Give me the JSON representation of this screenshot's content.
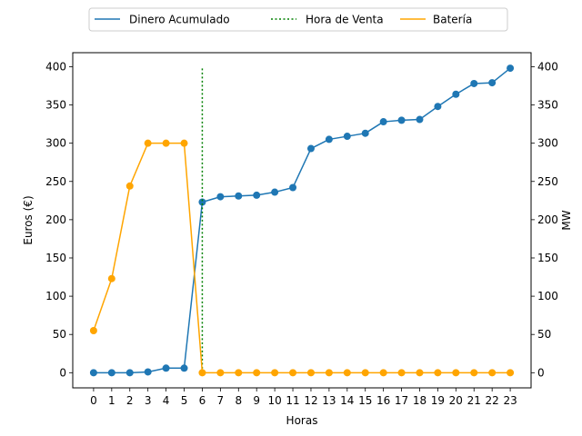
{
  "chart_data": {
    "type": "line",
    "xlabel": "Horas",
    "ylabel_left": "Euros (€)",
    "ylabel_right": "MW",
    "x": [
      0,
      1,
      2,
      3,
      4,
      5,
      6,
      7,
      8,
      9,
      10,
      11,
      12,
      13,
      14,
      15,
      16,
      17,
      18,
      19,
      20,
      21,
      22,
      23
    ],
    "ylim": [
      -19.8,
      418.3
    ],
    "yticks": [
      0,
      50,
      100,
      150,
      200,
      250,
      300,
      350,
      400
    ],
    "legend_position": "top-center",
    "series": [
      {
        "name": "Dinero Acumulado",
        "color": "#1f77b4",
        "style": "solid",
        "marker": "circle",
        "values": [
          0,
          0,
          0,
          1,
          6,
          6,
          223,
          230,
          231,
          232,
          236,
          242,
          293,
          305,
          309,
          313,
          328,
          330,
          331,
          348,
          364,
          378,
          379,
          398
        ]
      },
      {
        "name": "Hora de Venta",
        "color": "#008000",
        "style": "dotted",
        "marker": "none",
        "vline_x": 6,
        "y_range": [
          0,
          398
        ]
      },
      {
        "name": "Batería",
        "color": "#ffa500",
        "style": "solid",
        "marker": "circle",
        "values": [
          55,
          123,
          244,
          300,
          300,
          300,
          0,
          0,
          0,
          0,
          0,
          0,
          0,
          0,
          0,
          0,
          0,
          0,
          0,
          0,
          0,
          0,
          0,
          0
        ]
      }
    ]
  }
}
